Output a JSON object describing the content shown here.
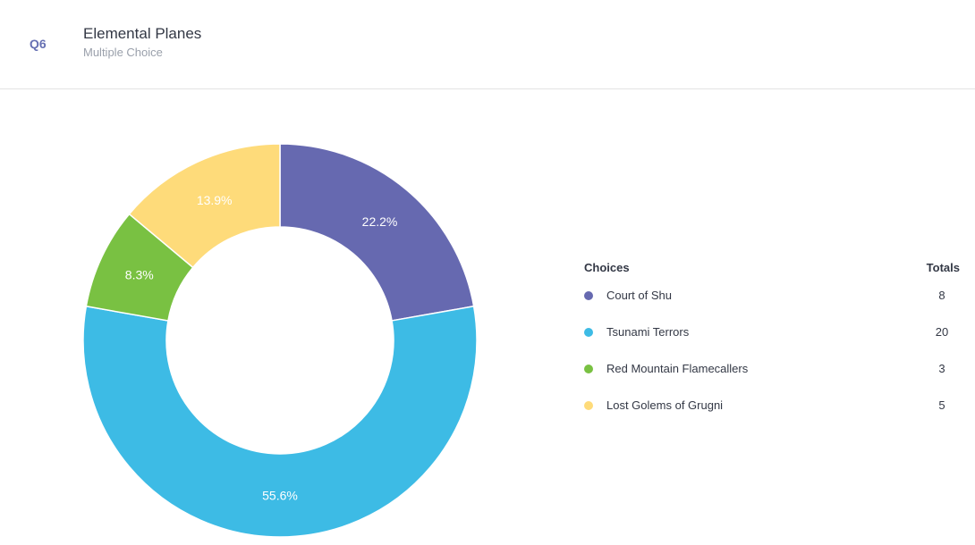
{
  "question": {
    "number": "Q6",
    "title": "Elemental Planes",
    "type": "Multiple Choice"
  },
  "legend": {
    "choices_header": "Choices",
    "totals_header": "Totals"
  },
  "chart_data": {
    "type": "pie",
    "donut": true,
    "categories": [
      "Court of Shu",
      "Tsunami Terrors",
      "Red Mountain Flamecallers",
      "Lost Golems of Grugni"
    ],
    "values": [
      8,
      20,
      3,
      5
    ],
    "percent_labels": [
      "22.2%",
      "55.6%",
      "8.3%",
      "13.9%"
    ],
    "colors": [
      "#6669b0",
      "#3dbbe5",
      "#79c142",
      "#fedb7a"
    ],
    "legend_placement": "right"
  }
}
